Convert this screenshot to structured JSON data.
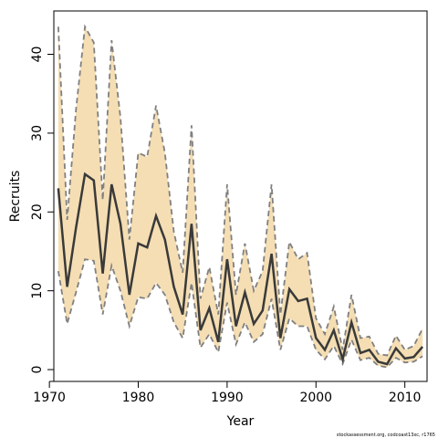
{
  "chart_data": {
    "type": "line",
    "title": "",
    "xlabel": "Year",
    "ylabel": "Recruits",
    "xlim": [
      1970.5,
      2012.5
    ],
    "ylim": [
      -1.5,
      45.5
    ],
    "xticks": [
      1970,
      1980,
      1990,
      2000,
      2010
    ],
    "yticks": [
      0,
      10,
      20,
      30,
      40
    ],
    "grid": false,
    "x": [
      1971,
      1972,
      1973,
      1974,
      1975,
      1976,
      1977,
      1978,
      1979,
      1980,
      1981,
      1982,
      1983,
      1984,
      1985,
      1986,
      1987,
      1988,
      1989,
      1990,
      1991,
      1992,
      1993,
      1994,
      1995,
      1996,
      1997,
      1998,
      1999,
      2000,
      2001,
      2002,
      2003,
      2004,
      2005,
      2006,
      2007,
      2008,
      2009,
      2010,
      2011,
      2012
    ],
    "series": [
      {
        "role": "estimate",
        "values": [
          23.0,
          10.5,
          18.0,
          24.8,
          24.0,
          12.2,
          23.5,
          18.5,
          9.5,
          16.0,
          15.5,
          19.5,
          16.5,
          10.5,
          7.0,
          18.5,
          5.0,
          7.8,
          3.5,
          14.0,
          5.5,
          9.8,
          5.8,
          7.5,
          14.7,
          4.0,
          10.2,
          8.7,
          9.0,
          4.0,
          2.5,
          5.0,
          1.3,
          6.0,
          2.1,
          2.5,
          1.0,
          0.7,
          2.7,
          1.4,
          1.6,
          2.9
        ]
      },
      {
        "role": "upper",
        "values": [
          43.5,
          19.0,
          33.0,
          43.5,
          41.5,
          21.5,
          41.8,
          32.0,
          16.5,
          27.5,
          27.0,
          33.5,
          27.5,
          17.5,
          12.3,
          31.0,
          9.0,
          13.0,
          7.0,
          23.5,
          9.5,
          16.0,
          10.0,
          12.5,
          23.5,
          7.0,
          16.2,
          14.0,
          14.8,
          6.5,
          4.5,
          8.0,
          2.5,
          9.5,
          4.0,
          4.2,
          2.0,
          1.8,
          4.3,
          2.5,
          3.0,
          5.2
        ]
      },
      {
        "role": "lower",
        "values": [
          12.5,
          5.8,
          9.8,
          14.0,
          13.8,
          7.0,
          13.2,
          10.0,
          5.5,
          9.2,
          9.0,
          11.0,
          9.5,
          6.0,
          4.0,
          11.0,
          2.8,
          4.5,
          2.2,
          8.5,
          3.2,
          6.0,
          3.5,
          4.5,
          9.0,
          2.5,
          6.5,
          5.5,
          5.5,
          2.5,
          1.3,
          3.0,
          0.7,
          3.8,
          1.2,
          1.5,
          0.5,
          0.3,
          1.5,
          0.9,
          1.0,
          1.7
        ]
      }
    ],
    "colors": {
      "band": "#f5deb3",
      "estimate": "#3a3a3a",
      "bounds": "#808080",
      "frame": "#000000"
    }
  },
  "credit": "stockassessment.org, codcoast13xc, r1765"
}
